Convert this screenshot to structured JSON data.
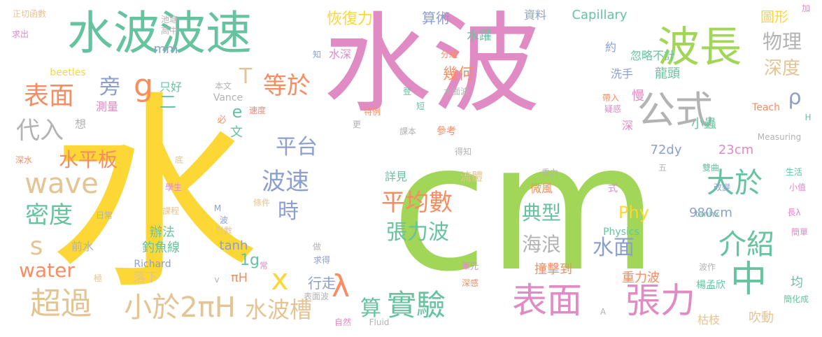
{
  "palette": {
    "pink": "#e08bc3",
    "yellow": "#fcd736",
    "green": "#a2d658",
    "teal": "#66c39f",
    "orange": "#f98c61",
    "blue": "#8c9fce",
    "tan": "#e5c494",
    "gray": "#b3b3b3"
  },
  "words": [
    {
      "text": "水",
      "color": "yellow"
    },
    {
      "text": "cm",
      "color": "green"
    },
    {
      "text": "水波",
      "color": "pink"
    },
    {
      "text": "水波波速",
      "color": "teal"
    },
    {
      "text": "波長",
      "color": "green"
    },
    {
      "text": "公式",
      "color": "gray"
    },
    {
      "text": "中",
      "color": "teal"
    },
    {
      "text": "張力",
      "color": "pink"
    },
    {
      "text": "表面",
      "color": "pink"
    },
    {
      "text": "大於",
      "color": "teal"
    },
    {
      "text": "平均數",
      "color": "orange"
    },
    {
      "text": "實驗",
      "color": "teal"
    },
    {
      "text": "介紹",
      "color": "teal"
    },
    {
      "text": "超過",
      "color": "tan"
    },
    {
      "text": "小於2πH",
      "color": "tan"
    },
    {
      "text": "wave",
      "color": "tan"
    },
    {
      "text": "密度",
      "color": "teal"
    },
    {
      "text": "表面",
      "color": "orange"
    },
    {
      "text": "波速",
      "color": "blue"
    },
    {
      "text": "張力波",
      "color": "teal"
    },
    {
      "text": "等於",
      "color": "orange"
    },
    {
      "text": "水波槽",
      "color": "tan"
    },
    {
      "text": "λ",
      "color": "orange"
    },
    {
      "text": "x",
      "color": "yellow"
    },
    {
      "text": "g",
      "color": "orange"
    },
    {
      "text": "旁",
      "color": "blue"
    },
    {
      "text": "物理",
      "color": "gray"
    },
    {
      "text": "深度",
      "color": "tan"
    },
    {
      "text": "ρ",
      "color": "blue"
    },
    {
      "text": "時",
      "color": "blue"
    },
    {
      "text": "平台",
      "color": "blue"
    },
    {
      "text": "水平板",
      "color": "orange"
    },
    {
      "text": "代入",
      "color": "gray"
    },
    {
      "text": "s",
      "color": "tan"
    },
    {
      "text": "water",
      "color": "orange"
    },
    {
      "text": "典型",
      "color": "teal"
    },
    {
      "text": "海浪",
      "color": "gray"
    },
    {
      "text": "水面",
      "color": "blue"
    },
    {
      "text": "Phy",
      "color": "yellow"
    },
    {
      "text": "算",
      "color": "teal"
    },
    {
      "text": "恢復力",
      "color": "yellow"
    },
    {
      "text": "算術",
      "color": "blue"
    },
    {
      "text": "幾何",
      "color": "orange"
    },
    {
      "text": "水躍",
      "color": "teal"
    },
    {
      "text": "Capillary",
      "color": "teal"
    },
    {
      "text": "資料",
      "color": "blue"
    },
    {
      "text": "圖形",
      "color": "yellow"
    },
    {
      "text": "龍頭",
      "color": "teal"
    },
    {
      "text": "忽略不計",
      "color": "teal"
    },
    {
      "text": "洗手",
      "color": "blue"
    },
    {
      "text": "約",
      "color": "blue"
    },
    {
      "text": "72dy",
      "color": "blue"
    },
    {
      "text": "23cm",
      "color": "pink"
    },
    {
      "text": "980cm",
      "color": "blue"
    },
    {
      "text": "小蟲",
      "color": "teal"
    },
    {
      "text": "均",
      "color": "teal"
    },
    {
      "text": "吹動",
      "color": "tan"
    },
    {
      "text": "枯枝",
      "color": "tan"
    },
    {
      "text": "重力波",
      "color": "orange"
    },
    {
      "text": "楊孟欣",
      "color": "teal"
    },
    {
      "text": "撞擊到",
      "color": "orange"
    },
    {
      "text": "行走",
      "color": "blue"
    },
    {
      "text": "落下",
      "color": "tan"
    },
    {
      "text": "流體",
      "color": "tan"
    },
    {
      "text": "詳見",
      "color": "teal"
    },
    {
      "text": "微風",
      "color": "orange"
    },
    {
      "text": "1g",
      "color": "teal"
    },
    {
      "text": "πH",
      "color": "orange"
    },
    {
      "text": "tanh",
      "color": "blue"
    },
    {
      "text": "辦法",
      "color": "teal"
    },
    {
      "text": "釣魚線",
      "color": "teal"
    },
    {
      "text": "前水",
      "color": "gray"
    },
    {
      "text": "Richard",
      "color": "blue"
    },
    {
      "text": "mm",
      "color": "blue"
    },
    {
      "text": "T",
      "color": "tan"
    },
    {
      "text": "e",
      "color": "teal"
    },
    {
      "text": "二",
      "color": "teal"
    },
    {
      "text": "只好",
      "color": "teal"
    },
    {
      "text": "文",
      "color": "teal"
    },
    {
      "text": "水深",
      "color": "pink"
    },
    {
      "text": "Vance",
      "color": "gray"
    },
    {
      "text": "測量",
      "color": "pink"
    },
    {
      "text": "beetles",
      "color": "yellow"
    },
    {
      "text": "想",
      "color": "gray"
    },
    {
      "text": "必",
      "color": "orange"
    },
    {
      "text": "速度",
      "color": "orange"
    },
    {
      "text": "本文",
      "color": "gray"
    },
    {
      "text": "池塘",
      "color": "gray"
    },
    {
      "text": "高中",
      "color": "gray"
    },
    {
      "text": "正切函數",
      "color": "tan"
    },
    {
      "text": "求出",
      "color": "pink"
    },
    {
      "text": "深水",
      "color": "orange"
    },
    {
      "text": "底",
      "color": "tan"
    },
    {
      "text": "學生",
      "color": "pink"
    },
    {
      "text": "日常",
      "color": "gray"
    },
    {
      "text": "課程",
      "color": "tan"
    },
    {
      "text": "條件",
      "color": "tan"
    },
    {
      "text": "對數",
      "color": "tan"
    },
    {
      "text": "M",
      "color": "blue"
    },
    {
      "text": "波",
      "color": "blue"
    },
    {
      "text": "極",
      "color": "tan"
    },
    {
      "text": "v",
      "color": "gray"
    },
    {
      "text": "常",
      "color": "pink"
    },
    {
      "text": "做",
      "color": "gray"
    },
    {
      "text": "求得",
      "color": "blue"
    },
    {
      "text": "表面波",
      "color": "gray"
    },
    {
      "text": "自然",
      "color": "pink"
    },
    {
      "text": "Fluid",
      "color": "gray"
    },
    {
      "text": "單元",
      "color": "pink"
    },
    {
      "text": "深感",
      "color": "orange"
    },
    {
      "text": "知",
      "color": "blue"
    },
    {
      "text": "分組",
      "color": "orange"
    },
    {
      "text": "登",
      "color": "teal"
    },
    {
      "text": "水面波",
      "color": "gray"
    },
    {
      "text": "特例",
      "color": "orange"
    },
    {
      "text": "短",
      "color": "teal"
    },
    {
      "text": "更",
      "color": "gray"
    },
    {
      "text": "課本",
      "color": "gray"
    },
    {
      "text": "參考",
      "color": "orange"
    },
    {
      "text": "得知",
      "color": "gray"
    },
    {
      "text": "重力",
      "color": "gray"
    },
    {
      "text": "式",
      "color": "pink"
    },
    {
      "text": "帶入",
      "color": "orange"
    },
    {
      "text": "疑惑",
      "color": "pink"
    },
    {
      "text": "慢",
      "color": "pink"
    },
    {
      "text": "深",
      "color": "pink"
    },
    {
      "text": "Teach",
      "color": "orange"
    },
    {
      "text": "H",
      "color": "teal"
    },
    {
      "text": "Measuring",
      "color": "gray"
    },
    {
      "text": "五",
      "color": "gray"
    },
    {
      "text": "雙曲",
      "color": "teal"
    },
    {
      "text": "生活",
      "color": "teal"
    },
    {
      "text": "改變",
      "color": "blue"
    },
    {
      "text": "小值",
      "color": "pink"
    },
    {
      "text": "Physics",
      "color": "teal"
    },
    {
      "text": "tanhx",
      "color": "teal"
    },
    {
      "text": "長λ",
      "color": "pink"
    },
    {
      "text": "簡單",
      "color": "pink"
    },
    {
      "text": "波作",
      "color": "gray"
    },
    {
      "text": "簡化成",
      "color": "teal"
    },
    {
      "text": "A",
      "color": "gray"
    },
    {
      "text": "加",
      "color": "pink"
    }
  ]
}
